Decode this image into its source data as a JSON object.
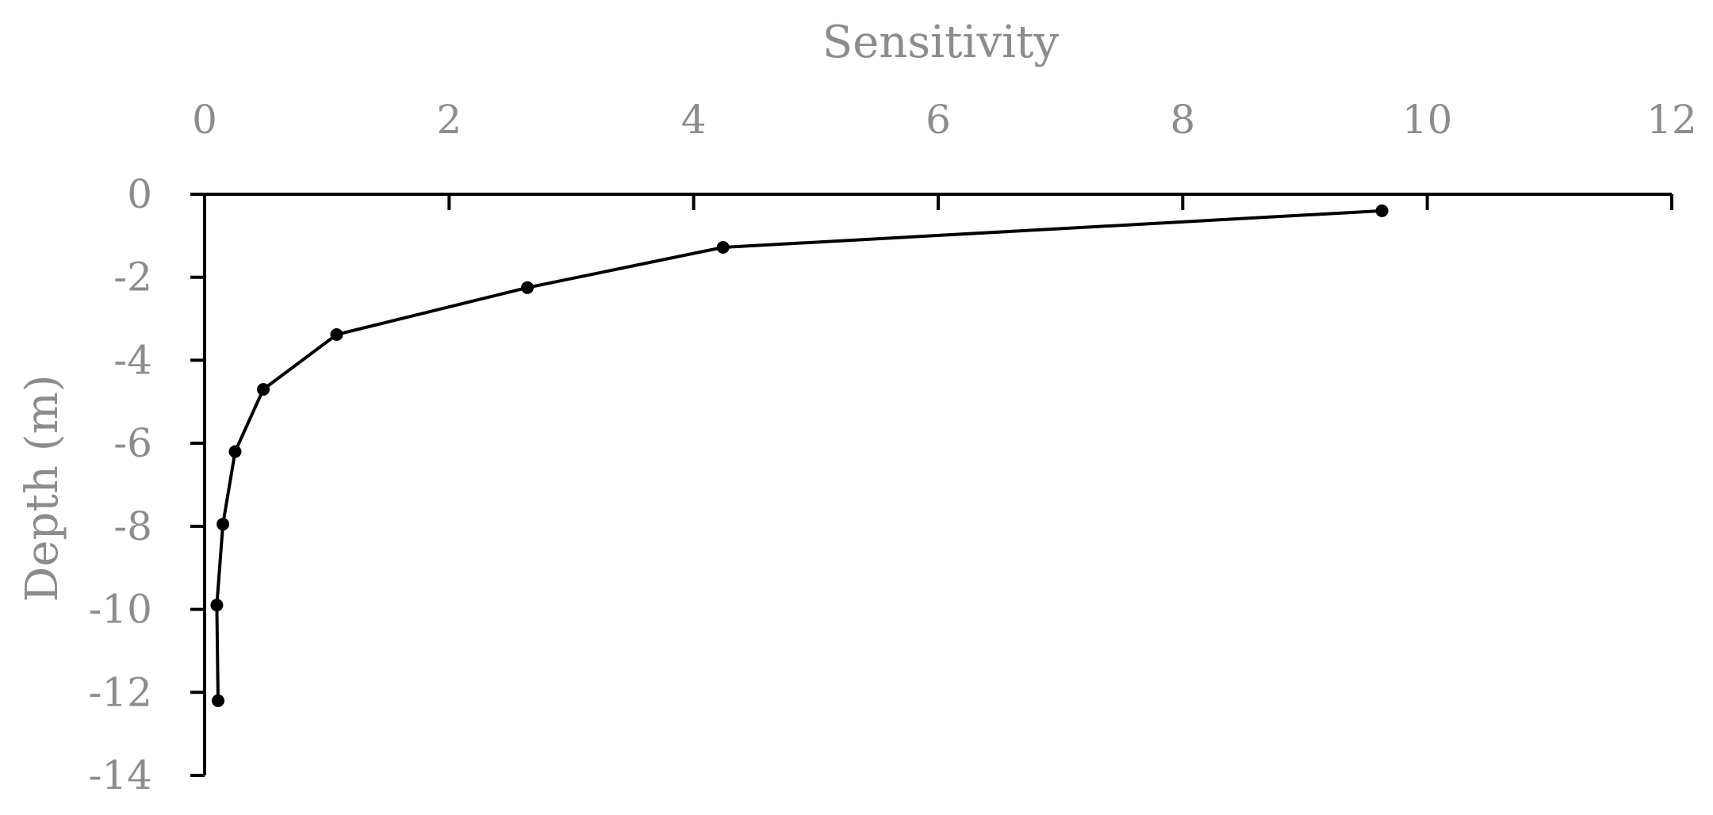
{
  "chart_data": {
    "type": "line",
    "xlabel": "Sensitivity",
    "ylabel": "Depth (m)",
    "xlim": [
      0,
      12
    ],
    "ylim": [
      -14,
      0
    ],
    "x_ticks": [
      0,
      2,
      4,
      6,
      8,
      10,
      12
    ],
    "y_ticks": [
      0,
      -2,
      -4,
      -6,
      -8,
      -10,
      -12,
      -14
    ],
    "x_axis_position": "top",
    "grid": false,
    "legend": "none",
    "series": [
      {
        "color": "#000000",
        "marker": "circle",
        "points": [
          {
            "x": 9.63,
            "y": -0.4
          },
          {
            "x": 4.24,
            "y": -1.28
          },
          {
            "x": 2.64,
            "y": -2.25
          },
          {
            "x": 1.08,
            "y": -3.38
          },
          {
            "x": 0.48,
            "y": -4.7
          },
          {
            "x": 0.25,
            "y": -6.2
          },
          {
            "x": 0.15,
            "y": -7.95
          },
          {
            "x": 0.1,
            "y": -9.9
          },
          {
            "x": 0.11,
            "y": -12.2
          }
        ]
      }
    ]
  }
}
